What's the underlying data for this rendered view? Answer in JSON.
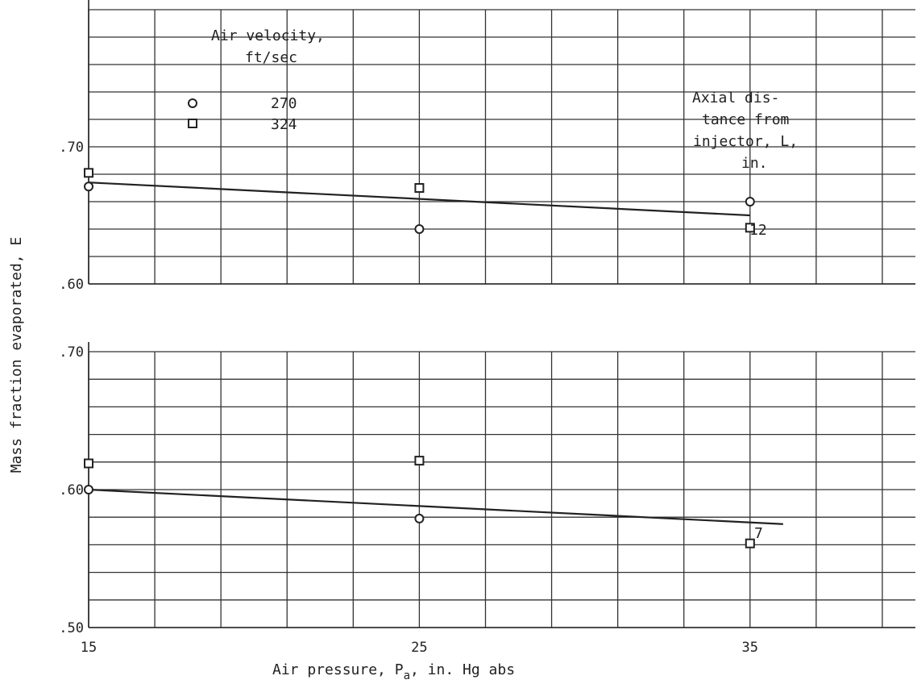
{
  "chart_data": [
    {
      "type": "scatter",
      "panel": "upper",
      "x_ticks": [
        15,
        25,
        35
      ],
      "y_ticks": [
        ".60",
        ".70"
      ],
      "xlim": [
        15,
        40
      ],
      "ylim": [
        0.6,
        0.8
      ],
      "series": [
        {
          "name": "270",
          "marker": "circle",
          "x": [
            15,
            25,
            35
          ],
          "y": [
            0.671,
            0.64,
            0.66
          ]
        },
        {
          "name": "324",
          "marker": "square",
          "x": [
            15,
            25,
            35
          ],
          "y": [
            0.681,
            0.67,
            0.641
          ]
        }
      ],
      "fit_line": {
        "x": [
          15,
          35
        ],
        "y": [
          0.674,
          0.65
        ]
      },
      "line_label": "12"
    },
    {
      "type": "scatter",
      "panel": "lower",
      "x_ticks": [
        15,
        25,
        35
      ],
      "y_ticks": [
        ".50",
        ".60",
        ".70"
      ],
      "xlim": [
        15,
        40
      ],
      "ylim": [
        0.5,
        0.7
      ],
      "series": [
        {
          "name": "270",
          "marker": "circle",
          "x": [
            15,
            25,
            35
          ],
          "y": [
            0.6,
            0.579,
            0.561
          ]
        },
        {
          "name": "324",
          "marker": "square",
          "x": [
            15,
            25,
            35
          ],
          "y": [
            0.619,
            0.621,
            0.561
          ]
        }
      ],
      "fit_line": {
        "x": [
          15,
          36
        ],
        "y": [
          0.6,
          0.575
        ]
      },
      "line_label": "7"
    }
  ],
  "legend": {
    "title_line1": "Air velocity,",
    "title_line2": "ft/sec",
    "entries": [
      "270",
      "324"
    ]
  },
  "annotation": {
    "lines": [
      "Axial dis-",
      "tance from",
      "injector, L,",
      "in."
    ]
  },
  "axes": {
    "ylabel": "Mass fraction evaporated, E",
    "xlabel_before": "Air pressure, P",
    "xlabel_sub": "a",
    "xlabel_after": ", in. Hg abs"
  }
}
